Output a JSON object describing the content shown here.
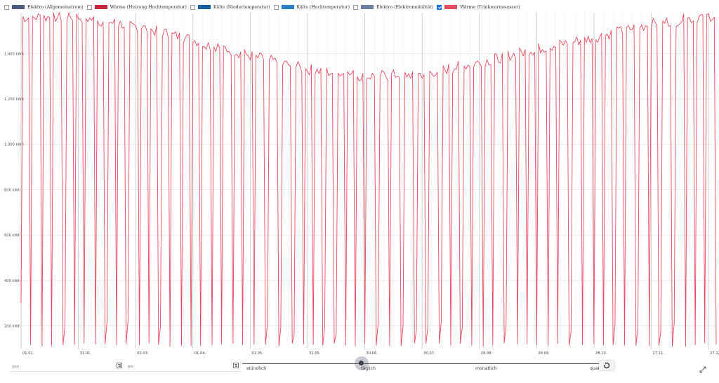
{
  "legend": {
    "items": [
      {
        "label": "Elektro (Allgemeinstrom)",
        "color": "#4a5b7f",
        "checked": false
      },
      {
        "label": "Wärme (Heizung Hochtemperatur)",
        "color": "#c8243e",
        "checked": false
      },
      {
        "label": "Kälte (Niedertemperatur)",
        "color": "#1a5e9e",
        "checked": false
      },
      {
        "label": "Kälte (Hochtemperatur)",
        "color": "#2a7fc8",
        "checked": false
      },
      {
        "label": "Elektro (Elektromobilität)",
        "color": "#6b7fa3",
        "checked": false
      },
      {
        "label": "Wärme (Trinkwarmwasser)",
        "color": "#e84a5f",
        "checked": true
      }
    ]
  },
  "chart_data": {
    "type": "line",
    "series_name": "Wärme (Trinkwarmwasser)",
    "series_color": "#e84a5f",
    "y_unit": "kWh",
    "ylim": [
      100,
      1580
    ],
    "y_ticks": [
      200,
      400,
      600,
      800,
      1000,
      1200,
      1400
    ],
    "y_tick_labels": [
      "200 kWh",
      "400 kWh",
      "600 kWh",
      "800 kWh",
      "1.000 kWh",
      "1.200 kWh",
      "1.400 kWh"
    ],
    "x_tick_labels": [
      "01.01.",
      "31.01.",
      "02.03.",
      "01.04.",
      "01.05.",
      "31.05.",
      "30.06.",
      "30.07.",
      "29.08.",
      "28.09.",
      "28.10.",
      "27.11.",
      "27.12."
    ],
    "x_axis": "days of year",
    "x_tick_days": [
      0,
      30,
      60,
      90,
      120,
      150,
      180,
      210,
      240,
      270,
      300,
      330,
      360
    ],
    "days_total": 365,
    "pattern": "daily values with regular drops to ~100 kWh every ~5-7 days",
    "peak_envelope": {
      "days": [
        0,
        30,
        60,
        90,
        120,
        150,
        180,
        210,
        240,
        270,
        300,
        330,
        364
      ],
      "values": [
        1560,
        1560,
        1520,
        1460,
        1390,
        1330,
        1300,
        1310,
        1360,
        1420,
        1470,
        1530,
        1570
      ]
    },
    "trough_value": 110,
    "grid": true,
    "legend_position": "top-left"
  },
  "controls": {
    "from_label": "von",
    "to_label": "bis",
    "resolution_options": [
      "stündlich",
      "täglich",
      "monatlich",
      "quartal"
    ],
    "resolution_selected": "täglich"
  }
}
